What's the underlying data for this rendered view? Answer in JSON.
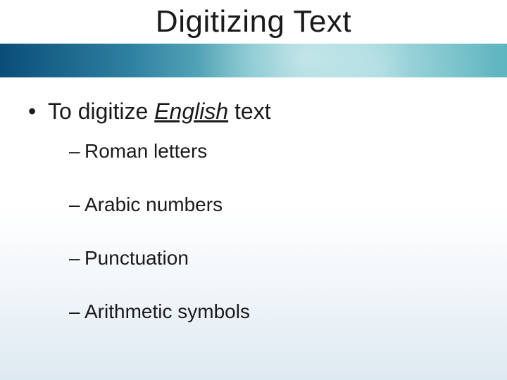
{
  "slide": {
    "title": "Digitizing Text",
    "background_gradient_top": "#ffffff",
    "background_gradient_bottom": "#dde9f1",
    "band_colors": [
      "#0a4e78",
      "#2d7fa0",
      "#6fbec7",
      "#7fcad0",
      "#5fb5c0"
    ],
    "title_fontsize": 44,
    "title_color": "#1a1a1a",
    "body_fontsize_lvl1": 32,
    "body_fontsize_lvl2": 28,
    "text_color": "#1a1a1a",
    "bullet1": {
      "prefix": "To digitize ",
      "emph": "English",
      "suffix": " text"
    },
    "sub_items": [
      "Roman letters",
      "Arabic numbers",
      "Punctuation",
      "Arithmetic symbols"
    ]
  }
}
